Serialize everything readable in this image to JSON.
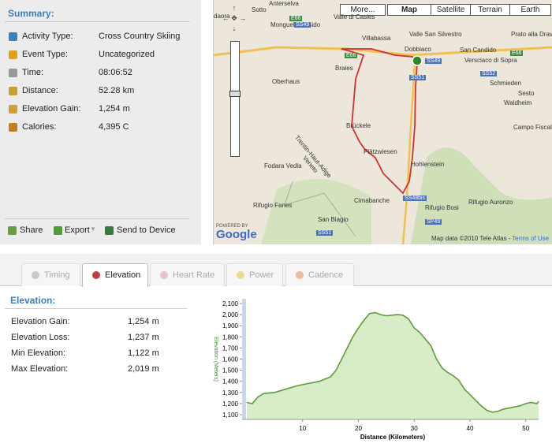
{
  "summary": {
    "title": "Summary:",
    "rows": [
      {
        "label": "Activity Type:",
        "value": "Cross Country Skiing"
      },
      {
        "label": "Event Type:",
        "value": "Uncategorized"
      },
      {
        "label": "Time:",
        "value": "08:06:52"
      },
      {
        "label": "Distance:",
        "value": "52.28 km"
      },
      {
        "label": "Elevation Gain:",
        "value": "1,254 m"
      },
      {
        "label": "Calories:",
        "value": "4,395 C"
      }
    ],
    "actions": [
      "Share",
      "Export",
      "Send to Device"
    ]
  },
  "map": {
    "buttons": [
      "More...",
      "Map",
      "Satellite",
      "Terrain",
      "Earth"
    ],
    "labels": [
      "Anterselva",
      "Sotto",
      "daora",
      "Monguelfo-Tesido",
      "Valle di Casies",
      "Villabassa",
      "Dobbiaco",
      "Valle San Silvestro",
      "San Candido",
      "Versciaco di Sopra",
      "Prato alla Drava",
      "Braies",
      "Oberhaus",
      "Schmieden",
      "Sesto",
      "Waldheim",
      "Campo Fiscalino",
      "Brückele",
      "Trentin-Haut-Adige",
      "Veneto",
      "Plätzwiesen",
      "Hohlenstein",
      "Fodara Vedla",
      "Cimabanche",
      "Rifugio Bosi",
      "Rifugio Auronzo",
      "Rifugio Fanes",
      "San Biagio"
    ],
    "roads": [
      "E66",
      "SS49",
      "E66",
      "SS49",
      "SS51",
      "SS52",
      "E66",
      "SS48bis",
      "SP49",
      "SS51"
    ],
    "powered_by": "POWERED BY",
    "logo": "Google",
    "attribution": "Map data ©2010 Tele Atlas -",
    "terms": "Terms of Use"
  },
  "tabs": [
    "Timing",
    "Elevation",
    "Heart Rate",
    "Power",
    "Cadence"
  ],
  "elevation": {
    "title": "Elevation:",
    "rows": [
      {
        "label": "Elevation Gain:",
        "value": "1,254 m"
      },
      {
        "label": "Elevation Loss:",
        "value": "1,237 m"
      },
      {
        "label": "Min Elevation:",
        "value": "1,122 m"
      },
      {
        "label": "Max Elevation:",
        "value": "2,019 m"
      }
    ]
  },
  "chart_data": {
    "type": "line",
    "x": [
      0,
      1,
      2,
      3,
      5,
      7,
      9,
      11,
      13,
      14,
      15,
      16,
      17,
      18,
      19,
      20,
      21,
      22,
      23,
      24,
      25,
      26,
      27,
      28,
      29,
      30,
      31,
      32,
      33,
      34,
      35,
      36,
      37,
      38,
      39,
      40,
      41,
      42,
      43,
      44,
      45,
      46,
      47,
      48,
      49,
      50,
      51,
      52,
      52.3
    ],
    "values": [
      1210,
      1200,
      1260,
      1290,
      1300,
      1330,
      1360,
      1380,
      1400,
      1420,
      1440,
      1500,
      1600,
      1700,
      1800,
      1880,
      1950,
      2010,
      2019,
      2000,
      1990,
      1995,
      2000,
      1995,
      1960,
      1880,
      1840,
      1780,
      1720,
      1600,
      1520,
      1480,
      1450,
      1410,
      1330,
      1280,
      1230,
      1180,
      1140,
      1122,
      1130,
      1150,
      1160,
      1170,
      1180,
      1200,
      1210,
      1200,
      1220
    ],
    "color": "#5a9e3a",
    "fill": "#d8ecc8",
    "xlim": [
      0,
      52.3
    ],
    "ylim": [
      1100,
      2100
    ],
    "xticks": [
      10,
      20,
      30,
      40,
      50
    ],
    "yticks": [
      {
        "value": 1100,
        "label": "1,100"
      },
      {
        "value": 1200,
        "label": "1,200"
      },
      {
        "value": 1300,
        "label": "1,300"
      },
      {
        "value": 1400,
        "label": "1,400"
      },
      {
        "value": 1500,
        "label": "1,500"
      },
      {
        "value": 1600,
        "label": "1,600"
      },
      {
        "value": 1700,
        "label": "1,700"
      },
      {
        "value": 1800,
        "label": "1,800"
      },
      {
        "value": 1900,
        "label": "1,900"
      },
      {
        "value": 2000,
        "label": "2,000"
      },
      {
        "value": 2100,
        "label": "2,100"
      }
    ],
    "xlabel": "Distance (Kilometers)",
    "ylabel": "Elevation (Meters)"
  }
}
